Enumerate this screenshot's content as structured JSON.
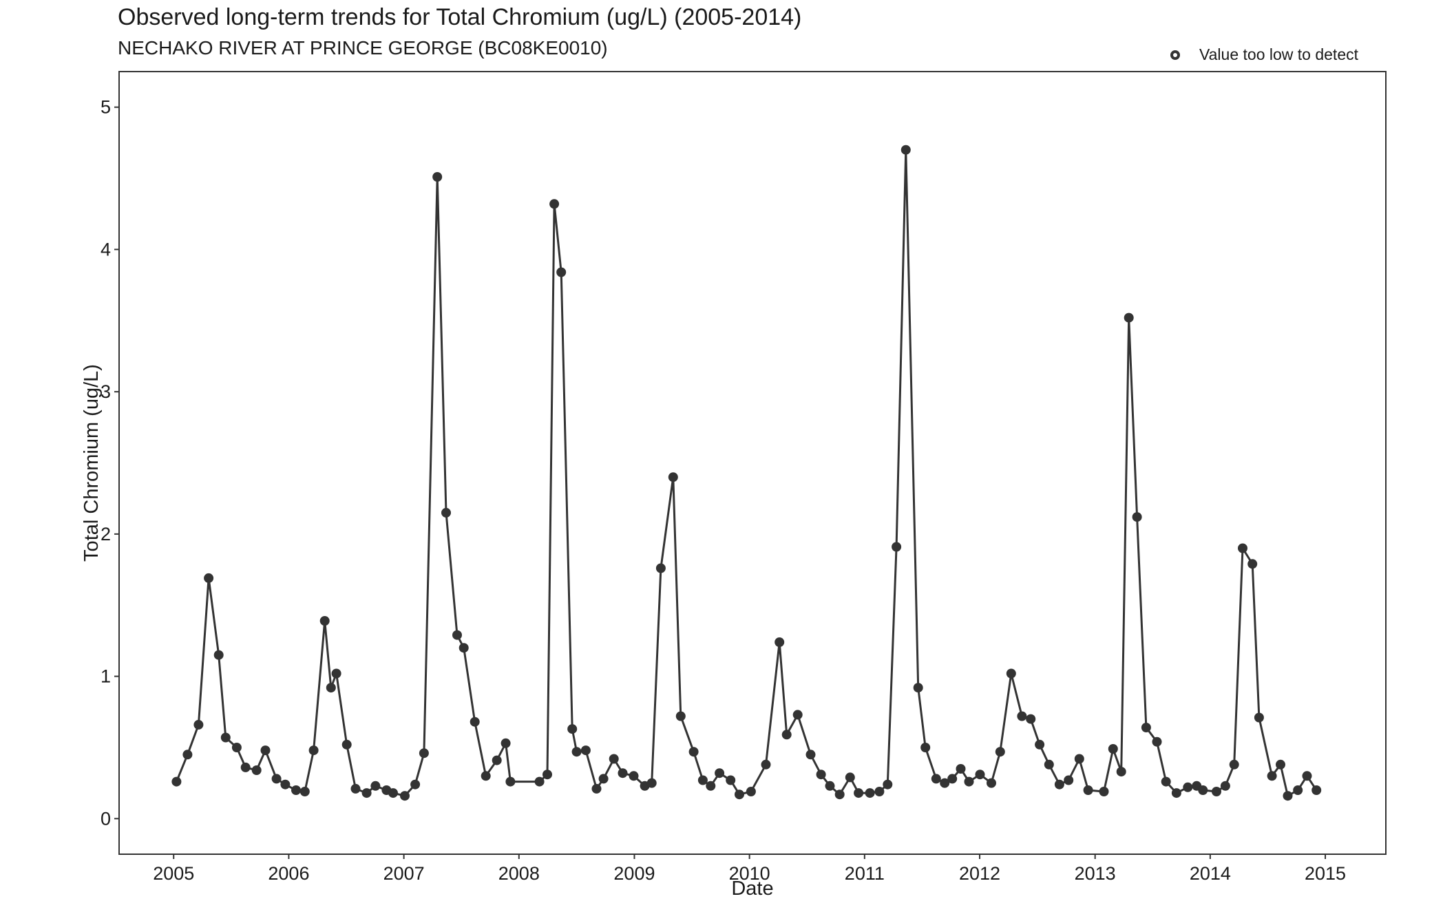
{
  "chart_data": {
    "type": "line",
    "title": "Observed long-term trends for Total Chromium (ug/L) (2005-2014)",
    "subtitle": "NECHAKO RIVER AT PRINCE GEORGE (BC08KE0010)",
    "xlabel": "Date",
    "ylabel": "Total Chromium (ug/L)",
    "xlim": [
      "2004-07-12",
      "2015-07-12"
    ],
    "ylim": [
      -0.25,
      5.25
    ],
    "x_ticks": [
      "2005",
      "2006",
      "2007",
      "2008",
      "2009",
      "2010",
      "2011",
      "2012",
      "2013",
      "2014",
      "2015"
    ],
    "y_ticks": [
      "0",
      "1",
      "2",
      "3",
      "4",
      "5"
    ],
    "grid": false,
    "legend": {
      "position": "top-right",
      "entries": [
        {
          "label": "Value too low to detect",
          "marker": "open-circle"
        }
      ]
    },
    "series": [
      {
        "marker": "filled-circle",
        "color": "#333333",
        "points": [
          [
            "2005-01-10",
            0.26
          ],
          [
            "2005-02-14",
            0.45
          ],
          [
            "2005-03-21",
            0.66
          ],
          [
            "2005-04-22",
            1.69
          ],
          [
            "2005-05-24",
            1.15
          ],
          [
            "2005-06-15",
            0.57
          ],
          [
            "2005-07-20",
            0.5
          ],
          [
            "2005-08-17",
            0.36
          ],
          [
            "2005-09-21",
            0.34
          ],
          [
            "2005-10-19",
            0.48
          ],
          [
            "2005-11-23",
            0.28
          ],
          [
            "2005-12-21",
            0.24
          ],
          [
            "2006-01-24",
            0.2
          ],
          [
            "2006-02-21",
            0.19
          ],
          [
            "2006-03-21",
            0.48
          ],
          [
            "2006-04-25",
            1.39
          ],
          [
            "2006-05-15",
            0.92
          ],
          [
            "2006-06-01",
            1.02
          ],
          [
            "2006-07-04",
            0.52
          ],
          [
            "2006-08-01",
            0.21
          ],
          [
            "2006-09-05",
            0.18
          ],
          [
            "2006-10-03",
            0.23
          ],
          [
            "2006-11-07",
            0.2
          ],
          [
            "2006-11-28",
            0.18
          ],
          [
            "2007-01-04",
            0.16
          ],
          [
            "2007-02-06",
            0.24
          ],
          [
            "2007-03-06",
            0.46
          ],
          [
            "2007-04-17",
            4.51
          ],
          [
            "2007-05-15",
            2.15
          ],
          [
            "2007-06-19",
            1.29
          ],
          [
            "2007-07-10",
            1.2
          ],
          [
            "2007-08-14",
            0.68
          ],
          [
            "2007-09-18",
            0.3
          ],
          [
            "2007-10-23",
            0.41
          ],
          [
            "2007-11-20",
            0.53
          ],
          [
            "2007-12-05",
            0.26
          ],
          [
            "2008-03-06",
            0.26
          ],
          [
            "2008-03-31",
            0.31
          ],
          [
            "2008-04-22",
            4.32
          ],
          [
            "2008-05-14",
            3.84
          ],
          [
            "2008-06-18",
            0.63
          ],
          [
            "2008-07-02",
            0.47
          ],
          [
            "2008-07-31",
            0.48
          ],
          [
            "2008-09-03",
            0.21
          ],
          [
            "2008-09-25",
            0.28
          ],
          [
            "2008-10-28",
            0.42
          ],
          [
            "2008-11-25",
            0.32
          ],
          [
            "2008-12-30",
            0.3
          ],
          [
            "2009-02-03",
            0.23
          ],
          [
            "2009-02-25",
            0.25
          ],
          [
            "2009-03-26",
            1.76
          ],
          [
            "2009-05-04",
            2.4
          ],
          [
            "2009-05-28",
            0.72
          ],
          [
            "2009-07-08",
            0.47
          ],
          [
            "2009-08-06",
            0.27
          ],
          [
            "2009-08-31",
            0.23
          ],
          [
            "2009-09-28",
            0.32
          ],
          [
            "2009-11-02",
            0.27
          ],
          [
            "2009-11-30",
            0.17
          ],
          [
            "2010-01-06",
            0.19
          ],
          [
            "2010-02-22",
            0.38
          ],
          [
            "2010-04-06",
            1.24
          ],
          [
            "2010-04-29",
            0.59
          ],
          [
            "2010-06-03",
            0.73
          ],
          [
            "2010-07-14",
            0.45
          ],
          [
            "2010-08-16",
            0.31
          ],
          [
            "2010-09-13",
            0.23
          ],
          [
            "2010-10-14",
            0.17
          ],
          [
            "2010-11-16",
            0.29
          ],
          [
            "2010-12-13",
            0.18
          ],
          [
            "2011-01-18",
            0.18
          ],
          [
            "2011-02-17",
            0.19
          ],
          [
            "2011-03-15",
            0.24
          ],
          [
            "2011-04-12",
            1.91
          ],
          [
            "2011-05-12",
            4.7
          ],
          [
            "2011-06-20",
            0.92
          ],
          [
            "2011-07-13",
            0.5
          ],
          [
            "2011-08-16",
            0.28
          ],
          [
            "2011-09-12",
            0.25
          ],
          [
            "2011-10-06",
            0.28
          ],
          [
            "2011-11-02",
            0.35
          ],
          [
            "2011-11-28",
            0.26
          ],
          [
            "2012-01-02",
            0.31
          ],
          [
            "2012-02-07",
            0.25
          ],
          [
            "2012-03-06",
            0.47
          ],
          [
            "2012-04-10",
            1.02
          ],
          [
            "2012-05-14",
            0.72
          ],
          [
            "2012-06-11",
            0.7
          ],
          [
            "2012-07-09",
            0.52
          ],
          [
            "2012-08-08",
            0.38
          ],
          [
            "2012-09-10",
            0.24
          ],
          [
            "2012-10-09",
            0.27
          ],
          [
            "2012-11-12",
            0.42
          ],
          [
            "2012-12-10",
            0.2
          ],
          [
            "2013-01-29",
            0.19
          ],
          [
            "2013-02-27",
            0.49
          ],
          [
            "2013-03-25",
            0.33
          ],
          [
            "2013-04-18",
            3.52
          ],
          [
            "2013-05-14",
            2.12
          ],
          [
            "2013-06-12",
            0.64
          ],
          [
            "2013-07-16",
            0.54
          ],
          [
            "2013-08-14",
            0.26
          ],
          [
            "2013-09-16",
            0.18
          ],
          [
            "2013-10-22",
            0.22
          ],
          [
            "2013-11-19",
            0.23
          ],
          [
            "2013-12-09",
            0.2
          ],
          [
            "2014-01-21",
            0.19
          ],
          [
            "2014-02-18",
            0.23
          ],
          [
            "2014-03-18",
            0.38
          ],
          [
            "2014-04-14",
            1.9
          ],
          [
            "2014-05-15",
            1.79
          ],
          [
            "2014-06-05",
            0.71
          ],
          [
            "2014-07-16",
            0.3
          ],
          [
            "2014-08-12",
            0.38
          ],
          [
            "2014-09-04",
            0.16
          ],
          [
            "2014-10-06",
            0.2
          ],
          [
            "2014-11-04",
            0.3
          ],
          [
            "2014-12-04",
            0.2
          ]
        ]
      }
    ]
  }
}
